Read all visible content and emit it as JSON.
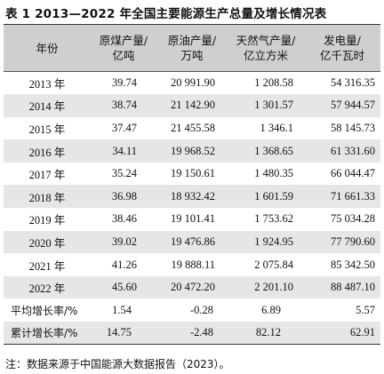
{
  "title": "表 1  2013—2022 年全国主要能源生产总量及增长情况表",
  "headers": [
    [
      "年份"
    ],
    [
      "原煤产量/",
      "亿吨"
    ],
    [
      "原油产量/",
      "万吨"
    ],
    [
      "天然气产量/",
      "亿立方米"
    ],
    [
      "发电量/",
      "亿千瓦时"
    ]
  ],
  "rows": [
    [
      "2013 年",
      "39.74",
      "20 991.90",
      "1 208.58",
      "54 316.35"
    ],
    [
      "2014 年",
      "38.74",
      "21 142.90",
      "1 301.57",
      "57 944.57"
    ],
    [
      "2015 年",
      "37.47",
      "21 455.58",
      "1 346.1",
      "58 145.73"
    ],
    [
      "2016 年",
      "34.11",
      "19 968.52",
      "1 368.65",
      "61 331.60"
    ],
    [
      "2017 年",
      "35.24",
      "19 150.61",
      "1 480.35",
      "66 044.47"
    ],
    [
      "2018 年",
      "36.98",
      "18 932.42",
      "1 601.59",
      "71 661.33"
    ],
    [
      "2019 年",
      "38.46",
      "19 101.41",
      "1 753.62",
      "75 034.28"
    ],
    [
      "2020 年",
      "39.02",
      "19 476.86",
      "1 924.95",
      "77 790.60"
    ],
    [
      "2021 年",
      "41.26",
      "19 888.11",
      "2 075.84",
      "85 342.50"
    ],
    [
      "2022 年",
      "45.60",
      "20 472.20",
      "2 201.10",
      "88 487.10"
    ]
  ],
  "stats": [
    [
      "平均增长率/%",
      "1.54",
      "-0.28",
      "6.89",
      "5.57"
    ],
    [
      "累计增长率/%",
      "14.75",
      "-2.48",
      "82.12",
      "62.91"
    ]
  ],
  "note": "注：数据来源于中国能源大数据报告（2023）。",
  "colors": {
    "header_bg": "#cfcfcf",
    "stripe_bg": "#e6e6e6",
    "rule": "#333333"
  }
}
